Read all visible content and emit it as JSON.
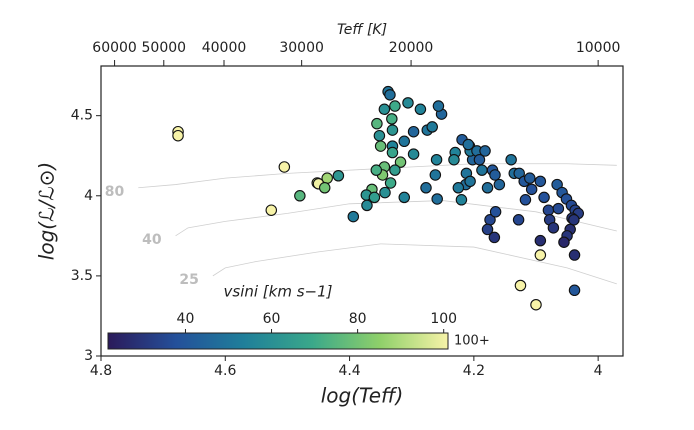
{
  "chart_data": {
    "type": "scatter",
    "xlabel": "log(Teff)",
    "ylabel": "log(ℒ/ℒ⊙)",
    "x2label": "Teff [K]",
    "xlim": [
      4.8,
      3.96
    ],
    "ylim": [
      3.0,
      4.81
    ],
    "xticks": [
      4.8,
      4.6,
      4.4,
      4.2,
      4.0
    ],
    "yticks": [
      3.0,
      3.5,
      4.0,
      4.5
    ],
    "x2scale": "log",
    "x2ticks": [
      60000,
      50000,
      40000,
      30000,
      20000,
      10000
    ],
    "marker_edge_color": "#111111",
    "x": [
      4.676,
      4.676,
      4.505,
      4.526,
      4.452,
      4.45,
      4.436,
      4.44,
      4.418,
      4.48,
      4.394,
      4.338,
      4.335,
      4.327,
      4.344,
      4.306,
      4.286,
      4.332,
      4.356,
      4.331,
      4.352,
      4.35,
      4.331,
      4.312,
      4.331,
      4.318,
      4.344,
      4.327,
      4.347,
      4.357,
      4.334,
      4.364,
      4.343,
      4.373,
      4.372,
      4.36,
      4.312,
      4.277,
      4.297,
      4.297,
      4.275,
      4.267,
      4.252,
      4.257,
      4.207,
      4.202,
      4.219,
      4.212,
      4.213,
      4.225,
      4.22,
      4.23,
      4.232,
      4.206,
      4.195,
      4.182,
      4.191,
      4.187,
      4.209,
      4.17,
      4.166,
      4.178,
      4.159,
      4.135,
      4.14,
      4.127,
      4.119,
      4.117,
      4.128,
      4.174,
      4.178,
      4.167,
      4.165,
      4.11,
      4.107,
      4.093,
      4.087,
      4.08,
      4.078,
      4.066,
      4.058,
      4.064,
      4.051,
      4.043,
      4.037,
      4.032,
      4.042,
      4.039,
      4.045,
      4.05,
      4.055,
      4.093,
      4.072,
      4.038,
      4.038,
      4.125,
      4.093,
      4.1,
      4.206,
      4.26,
      4.262,
      4.259
    ],
    "y": [
      4.4,
      4.375,
      4.18,
      3.91,
      4.08,
      4.075,
      4.11,
      4.05,
      4.125,
      4.0,
      3.87,
      4.65,
      4.63,
      4.56,
      4.54,
      4.58,
      4.54,
      4.48,
      4.45,
      4.41,
      4.375,
      4.31,
      4.31,
      4.34,
      4.27,
      4.21,
      4.18,
      4.16,
      4.13,
      4.16,
      4.08,
      4.04,
      4.02,
      4.005,
      3.94,
      3.99,
      3.99,
      4.05,
      4.26,
      4.4,
      4.41,
      4.43,
      4.51,
      4.56,
      4.31,
      4.225,
      4.35,
      4.14,
      4.07,
      4.05,
      3.975,
      4.27,
      4.225,
      4.28,
      4.28,
      4.28,
      4.225,
      4.16,
      4.32,
      4.16,
      4.13,
      4.05,
      4.07,
      4.14,
      4.225,
      4.14,
      4.09,
      3.975,
      3.85,
      3.85,
      3.79,
      3.74,
      3.9,
      4.11,
      4.04,
      4.09,
      3.99,
      3.91,
      3.85,
      4.07,
      4.02,
      3.92,
      3.98,
      3.94,
      3.91,
      3.89,
      3.86,
      3.85,
      3.79,
      3.75,
      3.71,
      3.72,
      3.8,
      3.63,
      3.41,
      3.44,
      3.63,
      3.32,
      4.09,
      4.225,
      4.13,
      3.98
    ],
    "vsini": [
      110,
      110,
      105,
      105,
      95,
      100,
      88,
      80,
      62,
      75,
      52,
      50,
      48,
      70,
      60,
      58,
      55,
      72,
      75,
      62,
      60,
      78,
      55,
      50,
      68,
      80,
      78,
      65,
      82,
      72,
      70,
      78,
      60,
      62,
      58,
      65,
      55,
      48,
      58,
      45,
      50,
      52,
      45,
      48,
      50,
      45,
      42,
      50,
      48,
      52,
      55,
      55,
      58,
      52,
      48,
      45,
      42,
      50,
      48,
      40,
      42,
      48,
      45,
      48,
      50,
      45,
      40,
      38,
      35,
      35,
      33,
      30,
      38,
      42,
      38,
      40,
      38,
      35,
      32,
      42,
      40,
      36,
      38,
      36,
      34,
      32,
      30,
      30,
      28,
      30,
      26,
      28,
      30,
      28,
      40,
      105,
      110,
      105,
      50,
      55,
      50,
      48
    ],
    "colorbar": {
      "label": "vsini [km s−1]",
      "lim": [
        22,
        101
      ],
      "ticks": [
        40,
        60,
        80,
        100
      ],
      "extend_label": "100+",
      "colormap": [
        "#2b1a5a",
        "#24509a",
        "#1f7f9a",
        "#3aa88a",
        "#8fd06a",
        "#f7f3a8"
      ]
    },
    "track_color": "#cfcfcf",
    "track_label_color": "#bdbdbd",
    "tracks": [
      {
        "name": "80",
        "x": [
          4.74,
          4.68,
          4.6,
          4.5,
          4.35,
          4.2,
          4.05,
          3.97
        ],
        "y": [
          4.05,
          4.07,
          4.11,
          4.14,
          4.17,
          4.2,
          4.2,
          4.19
        ]
      },
      {
        "name": "40",
        "x": [
          4.68,
          4.66,
          4.6,
          4.5,
          4.4,
          4.25,
          4.1,
          3.97
        ],
        "y": [
          3.75,
          3.8,
          3.84,
          3.89,
          3.95,
          3.97,
          3.9,
          3.78
        ]
      },
      {
        "name": "25",
        "x": [
          4.62,
          4.6,
          4.55,
          4.45,
          4.35,
          4.2,
          4.05,
          3.97
        ],
        "y": [
          3.5,
          3.55,
          3.59,
          3.65,
          3.7,
          3.68,
          3.55,
          3.45
        ]
      }
    ]
  }
}
